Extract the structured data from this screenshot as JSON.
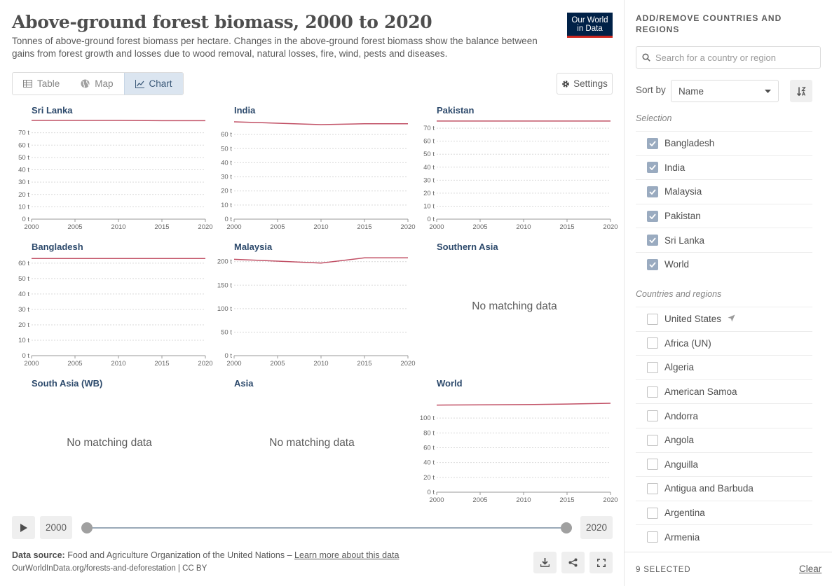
{
  "header": {
    "title": "Above-ground forest biomass, 2000 to 2020",
    "subtitle": "Tonnes of above-ground forest biomass per hectare. Changes in the above-ground forest biomass show the balance between gains from forest growth and losses due to wood removal, natural losses, fire, wind, pests and diseases.",
    "logo_line1": "Our World",
    "logo_line2": "in Data"
  },
  "tabs": [
    {
      "label": "Table",
      "icon": "table-icon"
    },
    {
      "label": "Map",
      "icon": "globe-icon"
    },
    {
      "label": "Chart",
      "icon": "line-chart-icon",
      "active": true
    }
  ],
  "settings_label": "Settings",
  "line_color": "#c15065",
  "chart_data": [
    {
      "type": "line",
      "title": "Sri Lanka",
      "x": [
        2000,
        2005,
        2010,
        2015,
        2020
      ],
      "series": [
        {
          "values": [
            80,
            80,
            80,
            79.8,
            79.8
          ]
        }
      ],
      "ylim": [
        0,
        80
      ],
      "yticks": [
        0,
        10,
        20,
        30,
        40,
        50,
        60,
        70
      ],
      "y_unit": "t",
      "xticks": [
        2000,
        2005,
        2010,
        2015,
        2020
      ]
    },
    {
      "type": "line",
      "title": "India",
      "x": [
        2000,
        2005,
        2010,
        2015,
        2020
      ],
      "series": [
        {
          "values": [
            69,
            68,
            67,
            67.6,
            67.6
          ]
        }
      ],
      "ylim": [
        0,
        70
      ],
      "yticks": [
        0,
        10,
        20,
        30,
        40,
        50,
        60
      ],
      "y_unit": "t",
      "xticks": [
        2000,
        2005,
        2010,
        2015,
        2020
      ]
    },
    {
      "type": "line",
      "title": "Pakistan",
      "x": [
        2000,
        2005,
        2010,
        2015,
        2020
      ],
      "series": [
        {
          "values": [
            75.5,
            75.5,
            75.5,
            75.5,
            75.5
          ]
        }
      ],
      "ylim": [
        0,
        76
      ],
      "yticks": [
        0,
        10,
        20,
        30,
        40,
        50,
        60,
        70
      ],
      "y_unit": "t",
      "xticks": [
        2000,
        2005,
        2010,
        2015,
        2020
      ]
    },
    {
      "type": "line",
      "title": "Bangladesh",
      "x": [
        2000,
        2005,
        2010,
        2015,
        2020
      ],
      "series": [
        {
          "values": [
            63,
            63,
            63,
            63,
            63
          ]
        }
      ],
      "ylim": [
        0,
        64
      ],
      "yticks": [
        0,
        10,
        20,
        30,
        40,
        50,
        60
      ],
      "y_unit": "t",
      "xticks": [
        2000,
        2005,
        2010,
        2015,
        2020
      ]
    },
    {
      "type": "line",
      "title": "Malaysia",
      "x": [
        2000,
        2005,
        2010,
        2015,
        2020
      ],
      "series": [
        {
          "values": [
            205,
            201,
            197,
            208,
            208
          ]
        }
      ],
      "ylim": [
        0,
        210
      ],
      "yticks": [
        0,
        50,
        100,
        150,
        200
      ],
      "y_unit": "t",
      "xticks": [
        2000,
        2005,
        2010,
        2015,
        2020
      ]
    },
    {
      "type": "line",
      "title": "Southern Asia",
      "x": [],
      "series": [],
      "no_data_text": "No matching data"
    },
    {
      "type": "line",
      "title": "South Asia (WB)",
      "x": [],
      "series": [],
      "no_data_text": "No matching data"
    },
    {
      "type": "line",
      "title": "Asia",
      "x": [],
      "series": [],
      "no_data_text": "No matching data"
    },
    {
      "type": "line",
      "title": "World",
      "x": [
        2000,
        2005,
        2010,
        2015,
        2020
      ],
      "series": [
        {
          "values": [
            117.5,
            117.9,
            118.2,
            119.0,
            120.0
          ]
        }
      ],
      "ylim": [
        0,
        120
      ],
      "yticks": [
        0,
        20,
        40,
        60,
        80,
        100
      ],
      "y_unit": "t",
      "xticks": [
        2000,
        2005,
        2010,
        2015,
        2020
      ]
    }
  ],
  "timeline": {
    "start": "2000",
    "end": "2020"
  },
  "footer": {
    "source_label": "Data source:",
    "source_text": "Food and Agriculture Organization of the United Nations –",
    "learn_more": "Learn more about this data",
    "url": "OurWorldInData.org/forests-and-deforestation | CC BY"
  },
  "sidebar": {
    "heading": "ADD/REMOVE COUNTRIES AND REGIONS",
    "search_placeholder": "Search for a country or region",
    "sort_label": "Sort by",
    "sort_value": "Name",
    "selection_label": "Selection",
    "selected": [
      "Bangladesh",
      "India",
      "Malaysia",
      "Pakistan",
      "Sri Lanka",
      "World"
    ],
    "others_label": "Countries and regions",
    "others": [
      "United States",
      "Africa (UN)",
      "Algeria",
      "American Samoa",
      "Andorra",
      "Angola",
      "Anguilla",
      "Antigua and Barbuda",
      "Argentina",
      "Armenia"
    ],
    "selected_count": "9 SELECTED",
    "clear_label": "Clear"
  }
}
